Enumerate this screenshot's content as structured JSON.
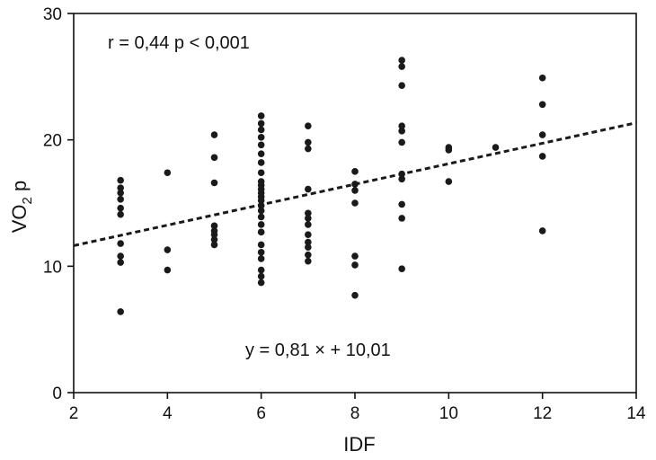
{
  "chart_data": {
    "type": "scatter",
    "title": "",
    "xlabel": "IDF",
    "ylabel": "VO",
    "ylabel_sub": "2",
    "ylabel_suffix": " p",
    "xlim": [
      2,
      14
    ],
    "ylim": [
      0,
      30
    ],
    "xticks": [
      2,
      4,
      6,
      8,
      10,
      12,
      14
    ],
    "yticks": [
      0,
      10,
      20,
      30
    ],
    "grid": false,
    "annotations": {
      "correlation": "r = 0,44  p < 0,001",
      "equation": "y = 0,81 ×  + 10,01"
    },
    "regression": {
      "slope": 0.81,
      "intercept": 10.01
    },
    "colors": {
      "points": "#1a1a1a",
      "line": "#1a1a1a",
      "axes": "#111111"
    },
    "points": [
      [
        3,
        6.4
      ],
      [
        3,
        10.3
      ],
      [
        3,
        10.8
      ],
      [
        3,
        11.8
      ],
      [
        3,
        14.1
      ],
      [
        3,
        14.6
      ],
      [
        3,
        15.3
      ],
      [
        3,
        15.8
      ],
      [
        3,
        16.2
      ],
      [
        3,
        16.8
      ],
      [
        4,
        9.7
      ],
      [
        4,
        11.3
      ],
      [
        4,
        17.4
      ],
      [
        5,
        11.7
      ],
      [
        5,
        12.1
      ],
      [
        5,
        12.5
      ],
      [
        5,
        12.8
      ],
      [
        5,
        13.2
      ],
      [
        5,
        16.6
      ],
      [
        5,
        18.6
      ],
      [
        5,
        20.4
      ],
      [
        6,
        8.7
      ],
      [
        6,
        9.2
      ],
      [
        6,
        9.7
      ],
      [
        6,
        10.6
      ],
      [
        6,
        11.1
      ],
      [
        6,
        11.7
      ],
      [
        6,
        12.7
      ],
      [
        6,
        13.3
      ],
      [
        6,
        13.9
      ],
      [
        6,
        14.4
      ],
      [
        6,
        14.8
      ],
      [
        6,
        15.2
      ],
      [
        6,
        15.5
      ],
      [
        6,
        15.8
      ],
      [
        6,
        16.1
      ],
      [
        6,
        16.4
      ],
      [
        6,
        16.7
      ],
      [
        6,
        17.4
      ],
      [
        6,
        18.2
      ],
      [
        6,
        18.9
      ],
      [
        6,
        19.6
      ],
      [
        6,
        20.2
      ],
      [
        6,
        20.8
      ],
      [
        6,
        21.3
      ],
      [
        6,
        21.9
      ],
      [
        7,
        10.4
      ],
      [
        7,
        10.9
      ],
      [
        7,
        11.5
      ],
      [
        7,
        11.9
      ],
      [
        7,
        12.5
      ],
      [
        7,
        13.3
      ],
      [
        7,
        13.8
      ],
      [
        7,
        14.2
      ],
      [
        7,
        16.1
      ],
      [
        7,
        19.3
      ],
      [
        7,
        19.8
      ],
      [
        7,
        21.1
      ],
      [
        8,
        7.7
      ],
      [
        8,
        10.1
      ],
      [
        8,
        10.8
      ],
      [
        8,
        15.0
      ],
      [
        8,
        16.0
      ],
      [
        8,
        16.5
      ],
      [
        8,
        17.5
      ],
      [
        9,
        9.8
      ],
      [
        9,
        13.8
      ],
      [
        9,
        14.9
      ],
      [
        9,
        16.9
      ],
      [
        9,
        17.3
      ],
      [
        9,
        19.8
      ],
      [
        9,
        20.7
      ],
      [
        9,
        21.1
      ],
      [
        9,
        24.3
      ],
      [
        9,
        25.8
      ],
      [
        9,
        26.3
      ],
      [
        10,
        16.7
      ],
      [
        10,
        19.2
      ],
      [
        10,
        19.4
      ],
      [
        11,
        19.4
      ],
      [
        12,
        12.8
      ],
      [
        12,
        18.7
      ],
      [
        12,
        20.4
      ],
      [
        12,
        22.8
      ],
      [
        12,
        24.9
      ]
    ]
  }
}
